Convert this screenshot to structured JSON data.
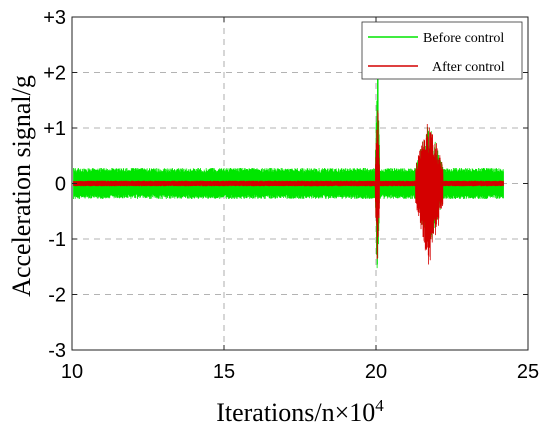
{
  "colors": {
    "before": "#00e600",
    "after": "#d40000",
    "grid": "#9a9a9a",
    "axis": "#222222"
  },
  "chart_data": {
    "type": "line",
    "xlabel": "Iterations/n×10",
    "xlabel_superscript": "4",
    "ylabel": "Acceleration signal/g",
    "xlim": [
      10,
      25
    ],
    "ylim": [
      -3,
      3
    ],
    "x_ticks": [
      10,
      15,
      20,
      25
    ],
    "x_tick_labels": [
      "10",
      "15",
      "20",
      "25"
    ],
    "y_ticks": [
      -3,
      -2,
      -1,
      0,
      1,
      2,
      3
    ],
    "y_tick_labels": [
      "-3",
      "-2",
      "-1",
      "0",
      "+1",
      "+2",
      "+3"
    ],
    "grid": true,
    "legend_position": "top-right",
    "series": [
      {
        "name": "Before control",
        "x_range": [
          10.05,
          24.2
        ],
        "baseline_amplitude": 0.28,
        "bursts": [
          {
            "x_start": 19.98,
            "x_end": 20.12,
            "peak_min": -2.15,
            "peak_max": 2.85
          },
          {
            "x_start": 21.3,
            "x_end": 22.2,
            "peak_min": -1.3,
            "peak_max": 1.2
          }
        ]
      },
      {
        "name": "After control",
        "x_range": [
          10.05,
          24.2
        ],
        "baseline_amplitude": 0.05,
        "bursts": [
          {
            "x_start": 19.98,
            "x_end": 20.12,
            "peak_min": -1.7,
            "peak_max": 1.75
          },
          {
            "x_start": 21.3,
            "x_end": 22.2,
            "peak_min": -1.6,
            "peak_max": 1.25
          }
        ]
      }
    ]
  }
}
